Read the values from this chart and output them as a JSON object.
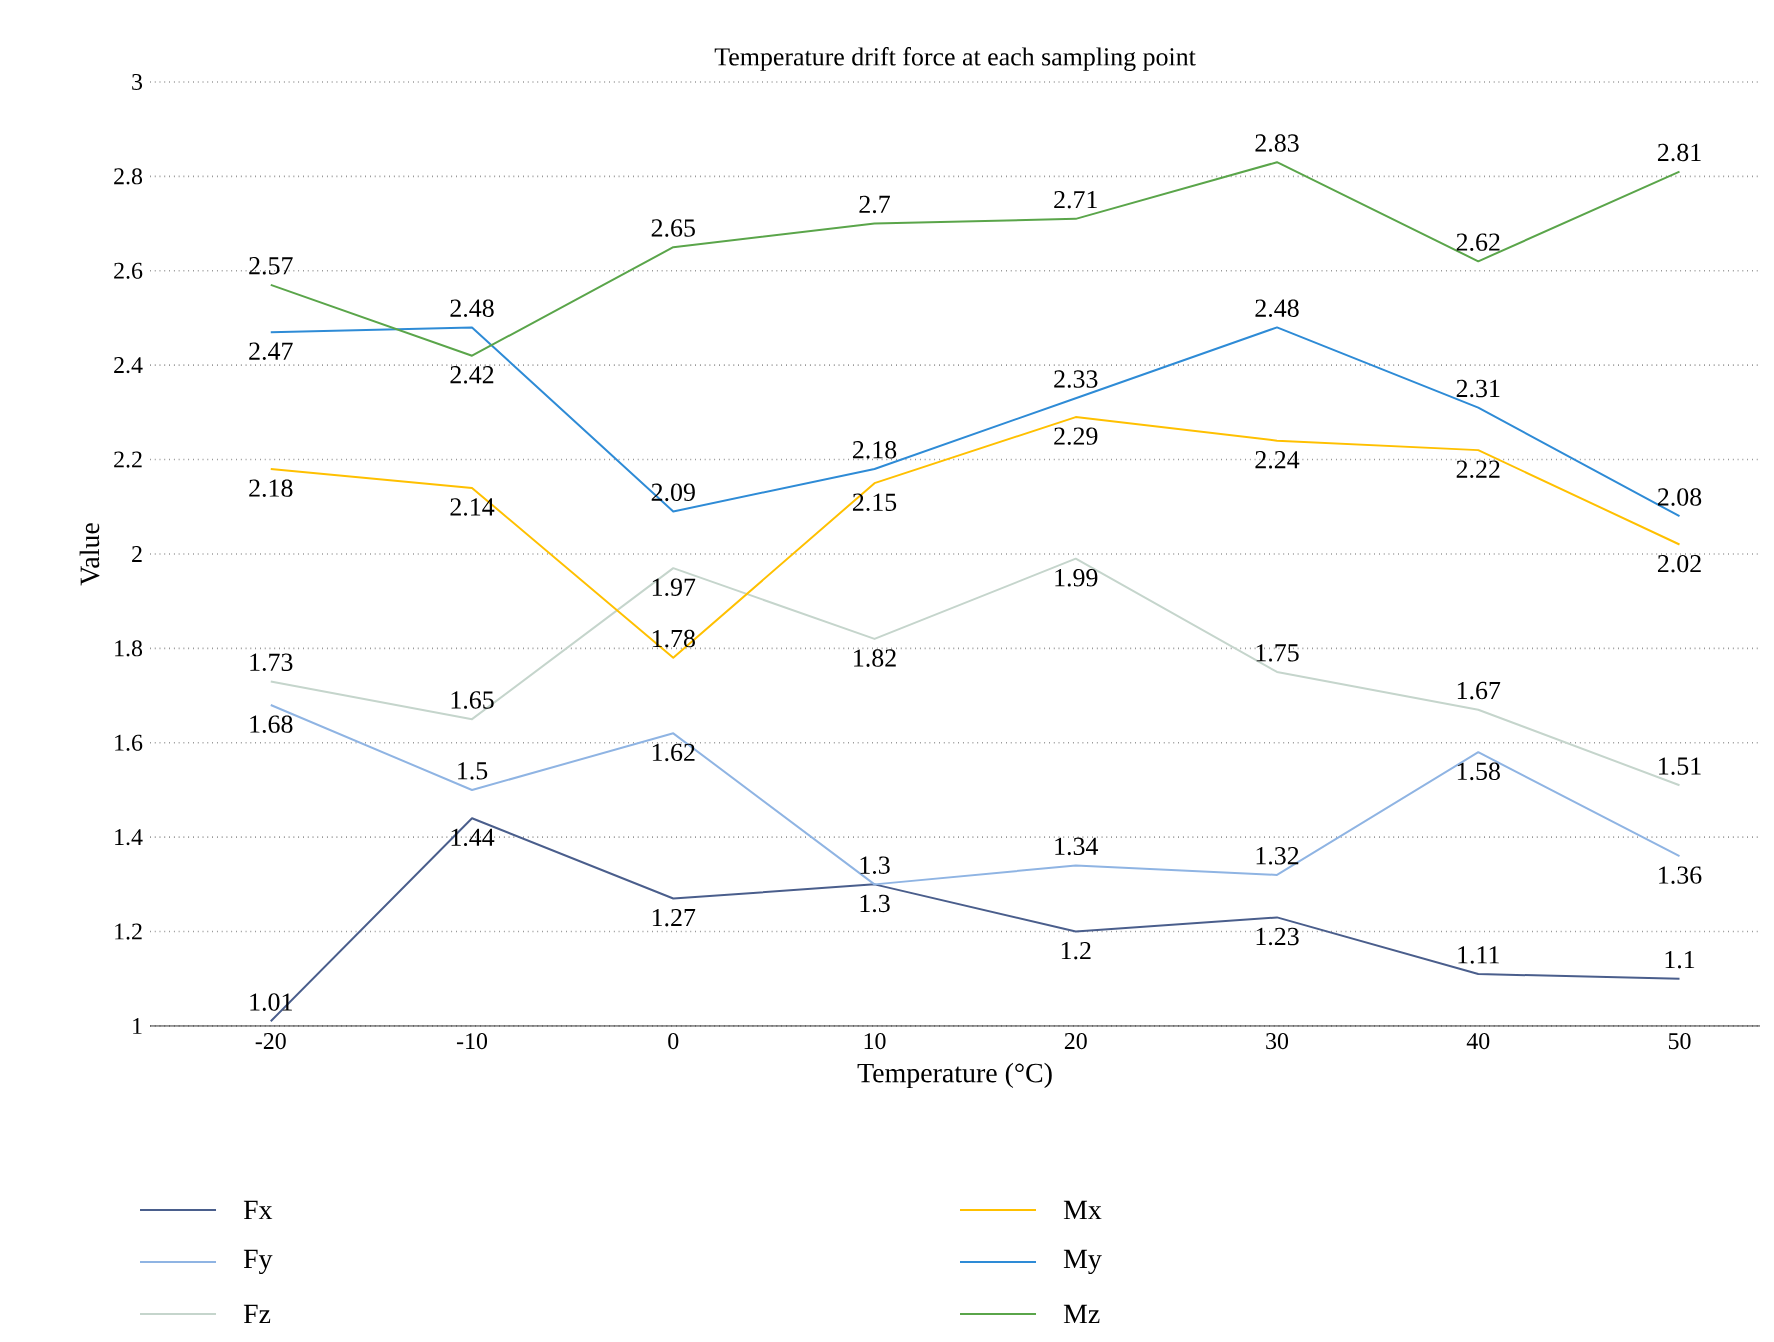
{
  "chart_data": {
    "type": "line",
    "title": "Temperature drift force at each sampling point",
    "xlabel": "Temperature (°C)",
    "ylabel": "Value",
    "x": [
      -20,
      -10,
      0,
      10,
      20,
      30,
      40,
      50
    ],
    "xlim": [
      -26,
      54
    ],
    "xticks": [
      -20,
      -10,
      0,
      10,
      20,
      30,
      40,
      50
    ],
    "ylim": [
      1,
      3
    ],
    "yticks": [
      1,
      1.2,
      1.4,
      1.6,
      1.8,
      2,
      2.2,
      2.4,
      2.6,
      2.8,
      3
    ],
    "grid": "y",
    "legend": "bottom",
    "data_labels": true,
    "marker": "none",
    "line_style": "solid",
    "series": [
      {
        "name": "Fx",
        "color": "#4a5e8c",
        "values": [
          1.01,
          1.44,
          1.27,
          1.3,
          1.2,
          1.23,
          1.11,
          1.1
        ]
      },
      {
        "name": "Fy",
        "color": "#8fb4e3",
        "values": [
          1.68,
          1.5,
          1.62,
          1.3,
          1.34,
          1.32,
          1.58,
          1.36
        ]
      },
      {
        "name": "Fz",
        "color": "#c5d5cc",
        "values": [
          1.73,
          1.65,
          1.97,
          1.82,
          1.99,
          1.75,
          1.67,
          1.51
        ]
      },
      {
        "name": "Mx",
        "color": "#ffc000",
        "values": [
          2.18,
          2.14,
          1.78,
          2.15,
          2.29,
          2.24,
          2.22,
          2.02
        ]
      },
      {
        "name": "My",
        "color": "#2e8bd6",
        "values": [
          2.47,
          2.48,
          2.09,
          2.18,
          2.33,
          2.48,
          2.31,
          2.08
        ]
      },
      {
        "name": "Mz",
        "color": "#5aa54a",
        "values": [
          2.57,
          2.42,
          2.65,
          2.7,
          2.71,
          2.83,
          2.62,
          2.81
        ]
      }
    ]
  }
}
